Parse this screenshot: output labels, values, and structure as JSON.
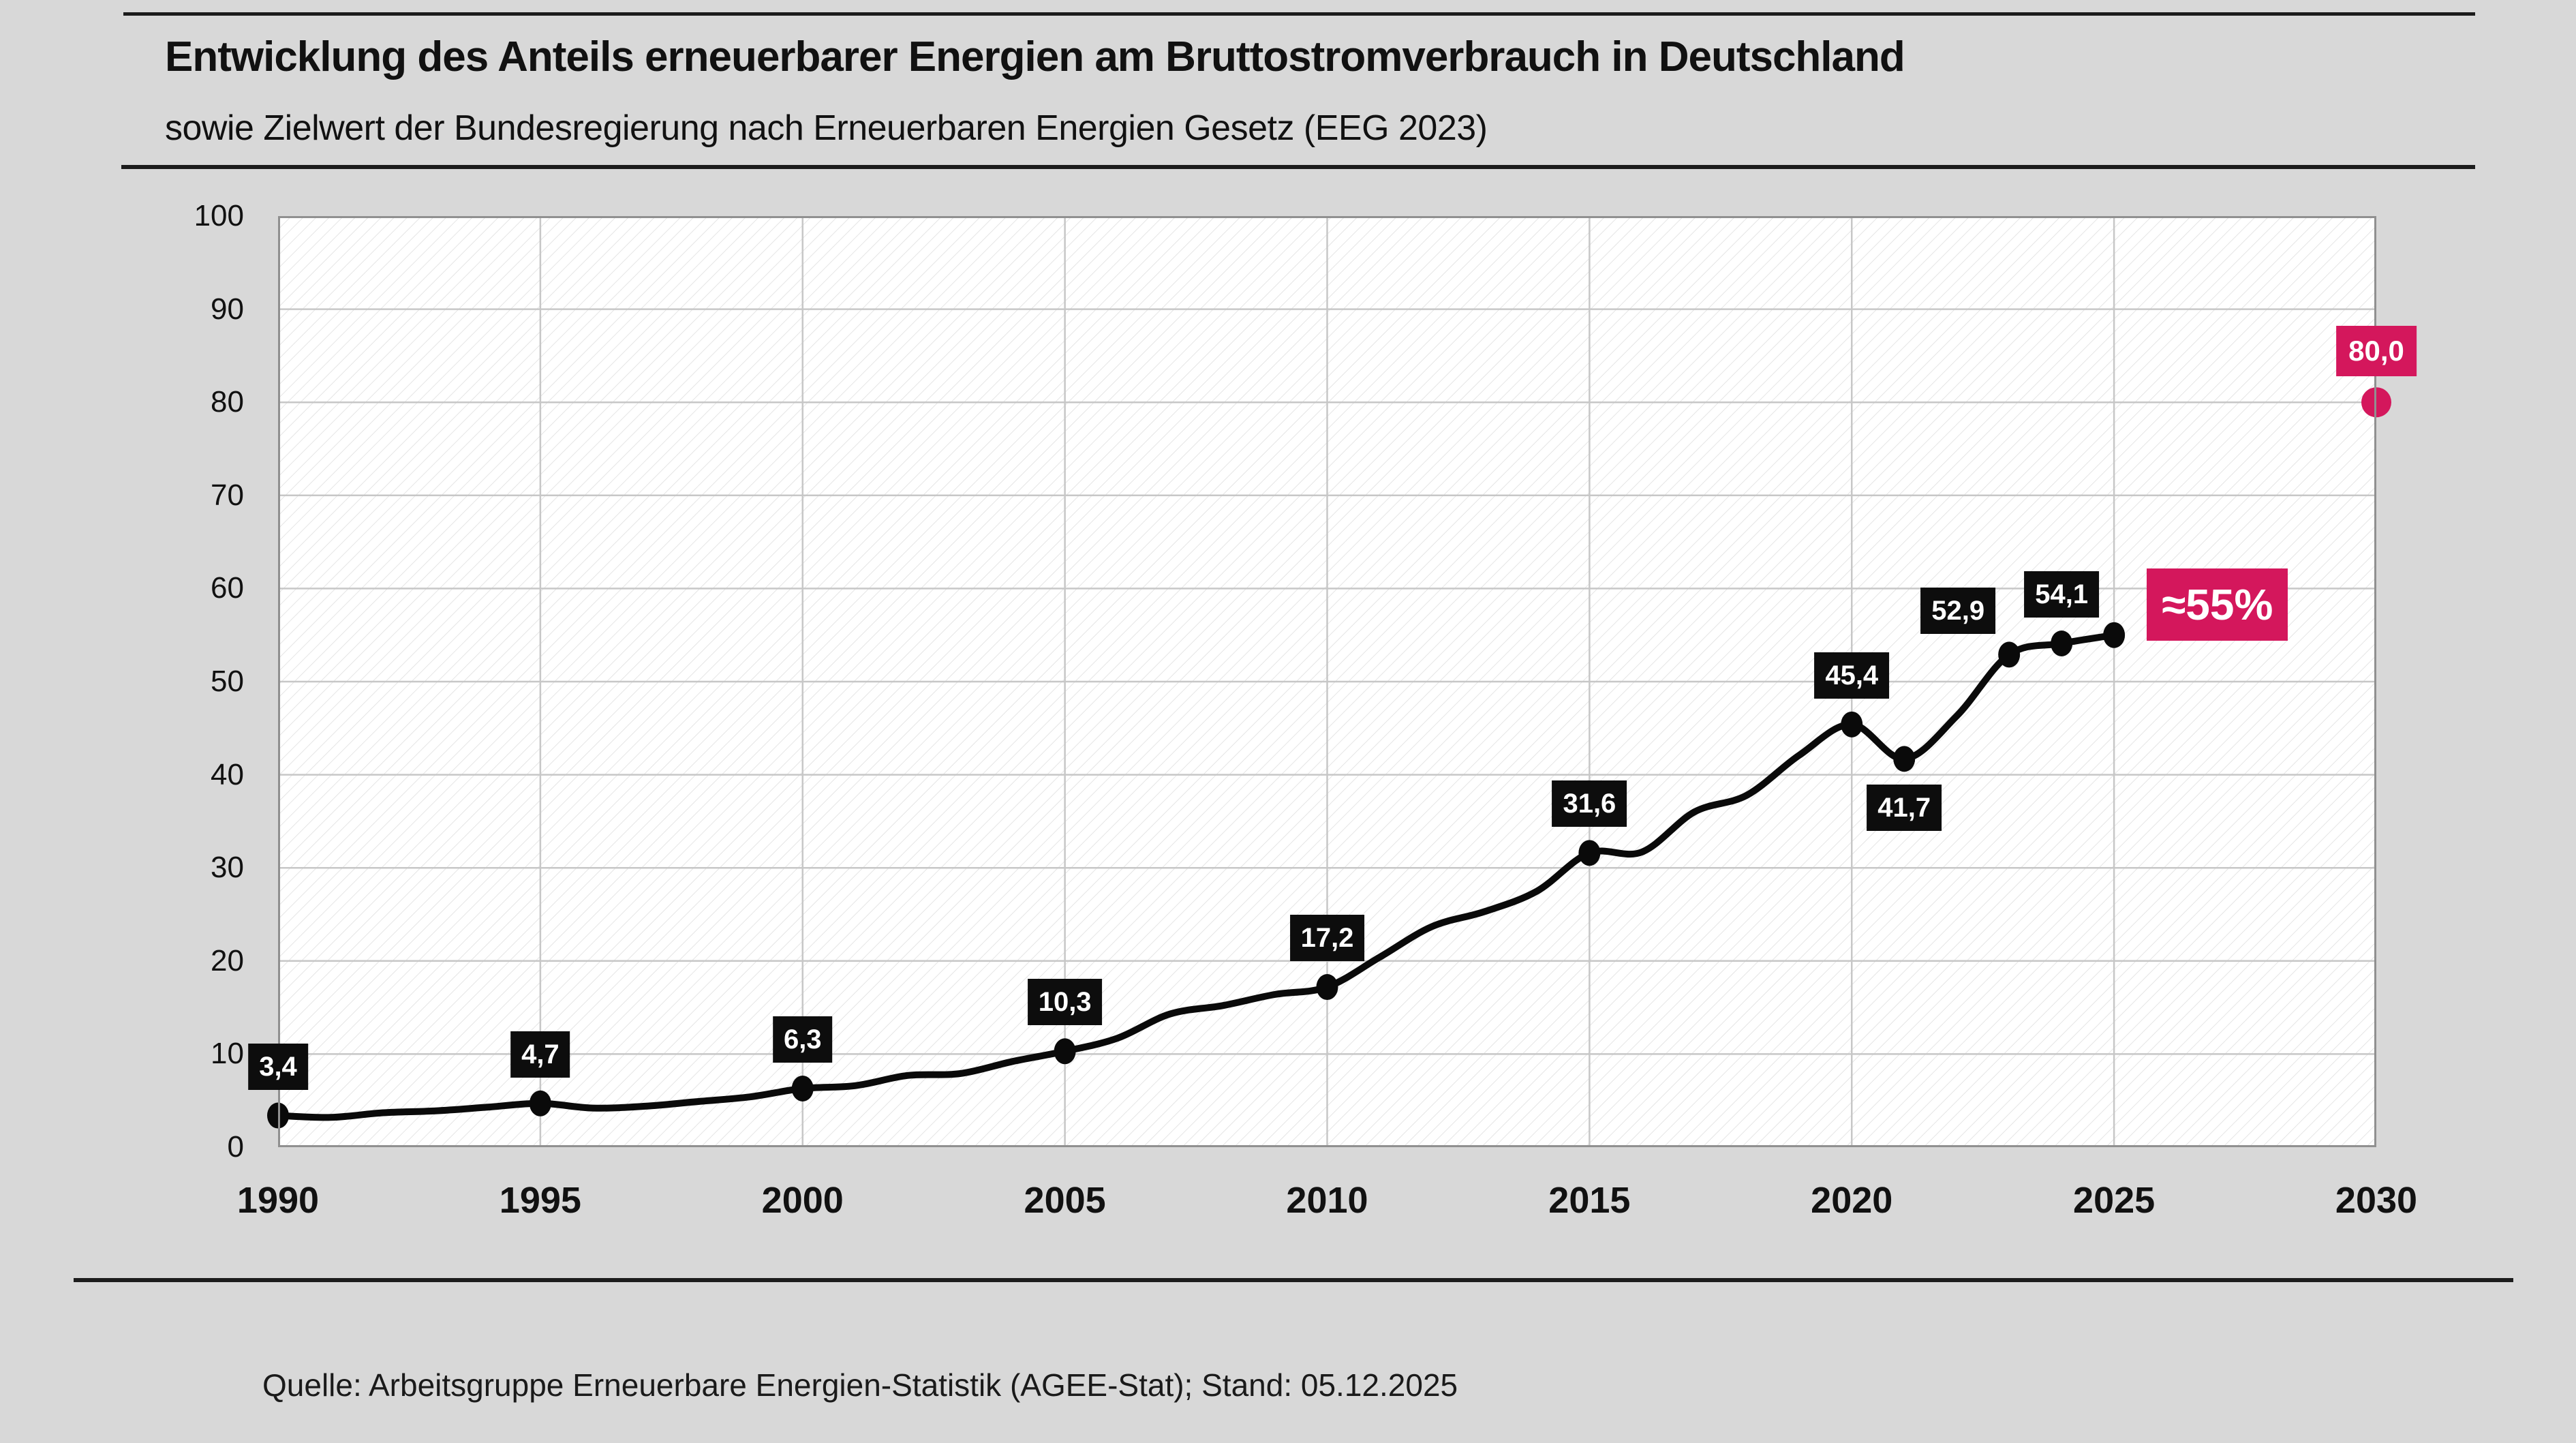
{
  "header": {
    "title": "Entwicklung des Anteils erneuerbarer Energien am Bruttostromverbrauch in Deutschland",
    "subtitle": "sowie Zielwert der Bundesregierung nach Erneuerbaren Energien Gesetz (EEG 2023)"
  },
  "footer": {
    "source": "Quelle: Arbeitsgruppe Erneuerbare Energien-Statistik (AGEE-Stat); Stand: 05.12.2025"
  },
  "colors": {
    "background": "#d8d8d8",
    "text": "#111111",
    "line": "#0a0a0a",
    "label_box": "#0d0d0d",
    "label_text": "#ffffff",
    "accent_pink": "#d4175c",
    "grid": "#c7c7c7",
    "plot_border": "#909090",
    "hatch": "#e2e2e2",
    "plot_background": "#ffffff"
  },
  "chart_data": {
    "type": "line",
    "unit": "%",
    "title": "Entwicklung des Anteils erneuerbarer Energien am Bruttostromverbrauch in Deutschland",
    "xlabel": "",
    "ylabel": "",
    "xlim": [
      1990,
      2030
    ],
    "ylim": [
      0,
      100
    ],
    "x_ticks": [
      1990,
      1995,
      2000,
      2005,
      2010,
      2015,
      2020,
      2025,
      2030
    ],
    "y_ticks": [
      0,
      10,
      20,
      30,
      40,
      50,
      60,
      70,
      80,
      90,
      100
    ],
    "grid": true,
    "legend": "none",
    "series": [
      {
        "name": "Anteil erneuerbarer Energien am Bruttostromverbrauch",
        "x": [
          1990,
          1991,
          1992,
          1993,
          1994,
          1995,
          1996,
          1997,
          1998,
          1999,
          2000,
          2001,
          2002,
          2003,
          2004,
          2005,
          2006,
          2007,
          2008,
          2009,
          2010,
          2011,
          2012,
          2013,
          2014,
          2015,
          2016,
          2017,
          2018,
          2019,
          2020,
          2021,
          2022,
          2023,
          2024,
          2025
        ],
        "y": [
          3.4,
          3.2,
          3.7,
          3.9,
          4.3,
          4.7,
          4.2,
          4.4,
          4.9,
          5.4,
          6.3,
          6.6,
          7.7,
          7.9,
          9.2,
          10.3,
          11.7,
          14.3,
          15.2,
          16.4,
          17.2,
          20.4,
          23.7,
          25.3,
          27.5,
          31.6,
          31.7,
          36.0,
          37.8,
          42.1,
          45.4,
          41.7,
          46.3,
          52.9,
          54.1,
          55.0
        ]
      }
    ],
    "marker_years": [
      1990,
      1995,
      2000,
      2005,
      2010,
      2015,
      2020,
      2021,
      2023,
      2024,
      2025
    ],
    "target_point": {
      "x": 2030,
      "y": 80.0,
      "label": "80,0"
    },
    "point_labels": [
      {
        "x": 1990,
        "y": 3.4,
        "text": "3,4",
        "style": "black",
        "placement": "above"
      },
      {
        "x": 1995,
        "y": 4.7,
        "text": "4,7",
        "style": "black",
        "placement": "above"
      },
      {
        "x": 2000,
        "y": 6.3,
        "text": "6,3",
        "style": "black",
        "placement": "above"
      },
      {
        "x": 2005,
        "y": 10.3,
        "text": "10,3",
        "style": "black",
        "placement": "above"
      },
      {
        "x": 2010,
        "y": 17.2,
        "text": "17,2",
        "style": "black",
        "placement": "above"
      },
      {
        "x": 2015,
        "y": 31.6,
        "text": "31,6",
        "style": "black",
        "placement": "above"
      },
      {
        "x": 2020,
        "y": 45.4,
        "text": "45,4",
        "style": "black",
        "placement": "above"
      },
      {
        "x": 2021,
        "y": 41.7,
        "text": "41,7",
        "style": "black",
        "placement": "below"
      },
      {
        "x": 2023,
        "y": 52.9,
        "text": "52,9",
        "style": "black",
        "placement": "above-left"
      },
      {
        "x": 2024,
        "y": 54.1,
        "text": "54,1",
        "style": "black",
        "placement": "above"
      },
      {
        "x": 2025,
        "y": 55.0,
        "text": "≈55%",
        "style": "pink-large",
        "placement": "right"
      },
      {
        "x": 2030,
        "y": 80.0,
        "text": "80,0",
        "style": "pink",
        "placement": "above"
      }
    ]
  }
}
